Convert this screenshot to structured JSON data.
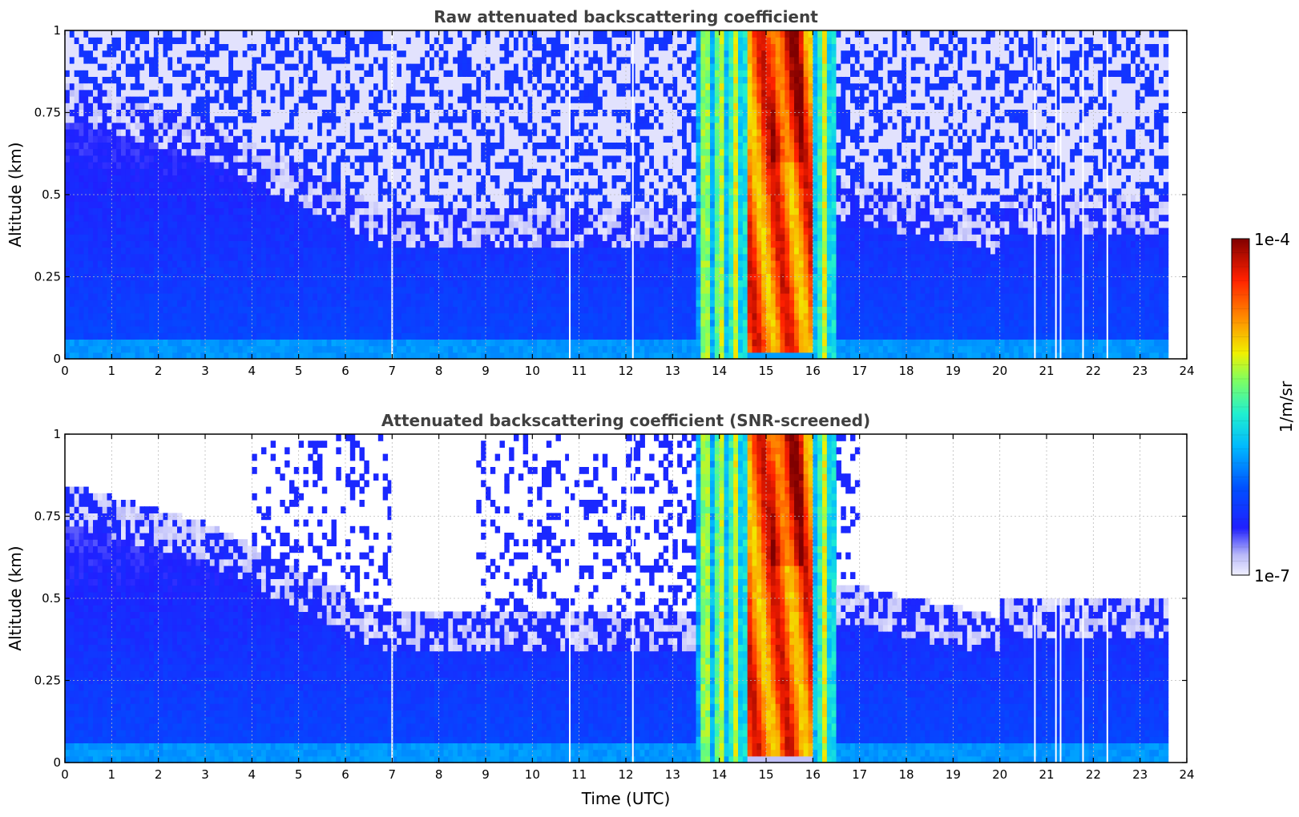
{
  "chart_data": [
    {
      "type": "heatmap",
      "title": "Raw attenuated backscattering coefficient",
      "xlabel": "",
      "ylabel": "Altitude (km)",
      "xlim": [
        0,
        24
      ],
      "ylim": [
        0,
        1
      ],
      "x_ticks": [
        "0",
        "1",
        "2",
        "3",
        "4",
        "5",
        "6",
        "7",
        "8",
        "9",
        "10",
        "11",
        "12",
        "13",
        "14",
        "15",
        "16",
        "17",
        "18",
        "19",
        "20",
        "21",
        "22",
        "23",
        "24"
      ],
      "y_ticks": [
        "0",
        "0.25",
        "0.5",
        "0.75",
        "1"
      ],
      "grid": true,
      "screened": false,
      "data_end_hour": 23.6,
      "data_gap_hours": [
        7.0,
        10.8,
        12.15,
        20.75,
        21.2,
        21.3,
        21.78,
        22.3
      ],
      "features": [
        {
          "kind": "cloud",
          "x_range": [
            14.6,
            16.0
          ],
          "y_range": [
            0,
            1
          ],
          "level": "high"
        },
        {
          "kind": "precip",
          "x_range": [
            13.5,
            16.6
          ],
          "y_range": [
            0,
            1
          ],
          "level": "medium"
        }
      ]
    },
    {
      "type": "heatmap",
      "title": "Attenuated backscattering coefficient (SNR-screened)",
      "xlabel": "Time (UTC)",
      "ylabel": "Altitude (km)",
      "xlim": [
        0,
        24
      ],
      "ylim": [
        0,
        1
      ],
      "x_ticks": [
        "0",
        "1",
        "2",
        "3",
        "4",
        "5",
        "6",
        "7",
        "8",
        "9",
        "10",
        "11",
        "12",
        "13",
        "14",
        "15",
        "16",
        "17",
        "18",
        "19",
        "20",
        "21",
        "22",
        "23",
        "24"
      ],
      "y_ticks": [
        "0",
        "0.25",
        "0.5",
        "0.75",
        "1"
      ],
      "grid": true,
      "screened": true,
      "data_end_hour": 23.6,
      "data_gap_hours": [
        7.0,
        10.8,
        12.15,
        20.75,
        21.2,
        21.3,
        21.78,
        22.3
      ],
      "features": [
        {
          "kind": "cloud",
          "x_range": [
            14.6,
            16.0
          ],
          "y_range": [
            0,
            1
          ],
          "level": "high"
        },
        {
          "kind": "precip",
          "x_range": [
            13.5,
            16.6
          ],
          "y_range": [
            0,
            1
          ],
          "level": "medium"
        }
      ]
    }
  ],
  "colorbar": {
    "label": "1/m/sr",
    "max_label": "1e-4",
    "min_label": "1e-7",
    "scale": "log",
    "colormap": "jet"
  }
}
